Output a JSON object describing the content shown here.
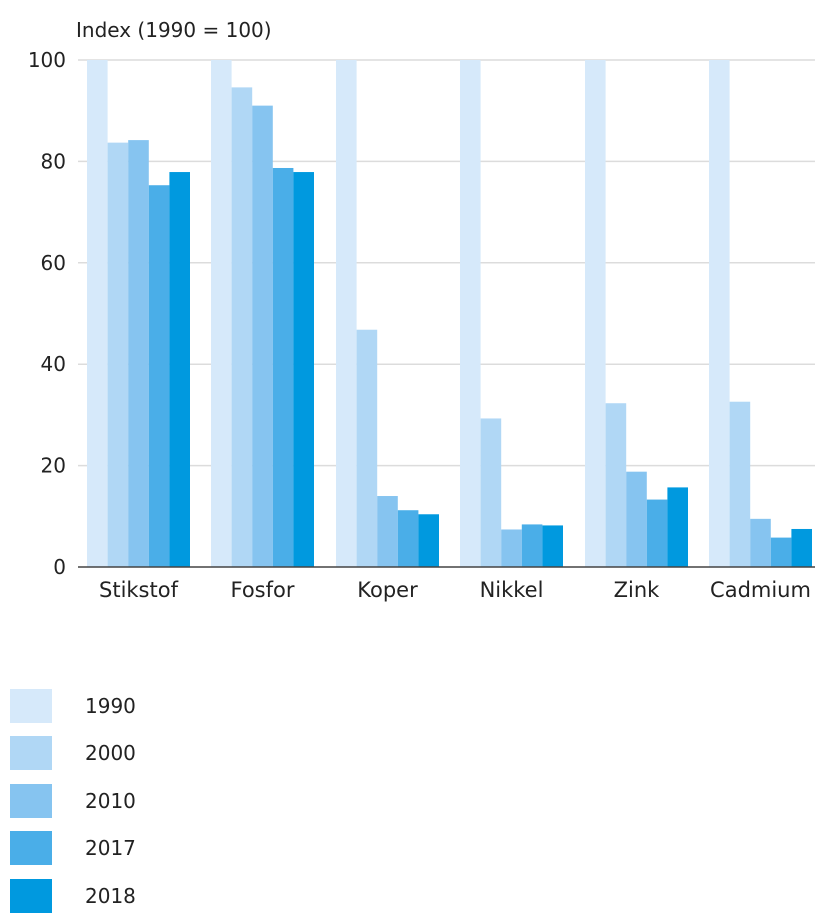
{
  "chart_data": {
    "type": "bar",
    "ylabel": "Index (1990 = 100)",
    "xlabel": "",
    "ylim": [
      0,
      100
    ],
    "yticks": [
      0,
      20,
      40,
      60,
      80,
      100
    ],
    "grid": true,
    "legend_position": "bottom-left",
    "categories": [
      "Stikstof",
      "Fosfor",
      "Koper",
      "Nikkel",
      "Zink",
      "Cadmium"
    ],
    "series": [
      {
        "name": "1990",
        "color": "#d6e9fa",
        "values": [
          100,
          100,
          100,
          100,
          100,
          100
        ]
      },
      {
        "name": "2000",
        "color": "#b0d7f5",
        "values": [
          83.7,
          94.6,
          46.8,
          29.3,
          32.3,
          32.6
        ]
      },
      {
        "name": "2010",
        "color": "#86c4f0",
        "values": [
          84.2,
          91.0,
          14.0,
          7.4,
          18.8,
          9.5
        ]
      },
      {
        "name": "2017",
        "color": "#4aaee8",
        "values": [
          75.3,
          78.7,
          11.2,
          8.4,
          13.3,
          5.8
        ]
      },
      {
        "name": "2018",
        "color": "#0099df",
        "values": [
          77.9,
          77.9,
          10.4,
          8.2,
          15.7,
          7.5
        ]
      }
    ]
  }
}
